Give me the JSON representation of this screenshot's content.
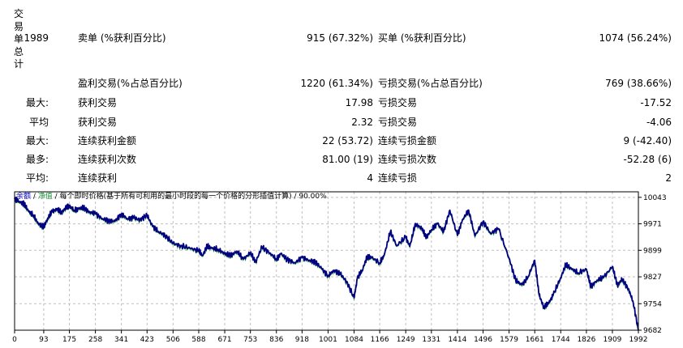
{
  "side_label": [
    "交",
    "易",
    "单",
    "总",
    "计"
  ],
  "stats": [
    {
      "prefix": "1989",
      "label1": "卖单 (%获利百分比)",
      "value1": "915 (67.32%)",
      "label2": "买单 (%获利百分比)",
      "value2": "1074 (56.24%)"
    },
    {
      "prefix": "",
      "label1": "盈利交易(%占总百分比)",
      "value1": "1220 (61.34%)",
      "label2": "亏损交易(%占总百分比)",
      "value2": "769 (38.66%)"
    },
    {
      "prefix": "最大:",
      "label1": "获利交易",
      "value1": "17.98",
      "label2": "亏损交易",
      "value2": "-17.52"
    },
    {
      "prefix": "平均",
      "label1": "获利交易",
      "value1": "2.32",
      "label2": "亏损交易",
      "value2": "-4.06"
    },
    {
      "prefix": "最大:",
      "label1": "连续获利金额",
      "value1": "22 (53.72)",
      "label2": "连续亏损金额",
      "value2": "9 (-42.40)"
    },
    {
      "prefix": "最多:",
      "label1": "连续获利次数",
      "value1": "81.00 (19)",
      "label2": "连续亏损次数",
      "value2": "-52.28 (6)"
    },
    {
      "prefix": "平均:",
      "label1": "连续获利",
      "value1": "4",
      "label2": "连续亏损",
      "value2": "2"
    }
  ],
  "legend": {
    "balance": "余额",
    "sep1": " / ",
    "equity": "净值",
    "sep2": " / ",
    "description": "每个即时价格(基于所有可利用的最小时段的每一个价格的分形插值计算)",
    "sep3": " / ",
    "quality": "90.00%"
  },
  "colors": {
    "balance": "#000080",
    "equity": "#1a8f3a",
    "grid": "#bfbfbf"
  },
  "chart_data": {
    "type": "line",
    "x_ticks": [
      0,
      93,
      175,
      258,
      341,
      423,
      506,
      588,
      671,
      753,
      836,
      918,
      1001,
      1084,
      1166,
      1249,
      1331,
      1414,
      1496,
      1579,
      1661,
      1744,
      1826,
      1909,
      1992
    ],
    "y_ticks": [
      10043,
      9971,
      9899,
      9827,
      9754,
      9682
    ],
    "xlim": [
      0,
      1992
    ],
    "ylim": [
      9682,
      10058
    ],
    "series": [
      {
        "name": "余额",
        "x": [
          0,
          15,
          30,
          45,
          60,
          75,
          93,
          105,
          120,
          135,
          150,
          165,
          175,
          190,
          205,
          220,
          240,
          258,
          280,
          300,
          320,
          341,
          360,
          380,
          400,
          423,
          440,
          460,
          480,
          506,
          530,
          560,
          588,
          600,
          615,
          630,
          650,
          671,
          690,
          710,
          730,
          753,
          770,
          790,
          815,
          836,
          850,
          870,
          895,
          918,
          940,
          960,
          980,
          1001,
          1020,
          1040,
          1060,
          1084,
          1095,
          1110,
          1125,
          1140,
          1166,
          1180,
          1200,
          1220,
          1249,
          1262,
          1280,
          1300,
          1315,
          1331,
          1350,
          1370,
          1390,
          1414,
          1430,
          1450,
          1470,
          1496,
          1520,
          1545,
          1579,
          1600,
          1620,
          1640,
          1661,
          1675,
          1690,
          1705,
          1720,
          1744,
          1760,
          1780,
          1800,
          1826,
          1840,
          1860,
          1880,
          1909,
          1925,
          1940,
          1960,
          1975,
          1992
        ],
        "values": [
          10038,
          10032,
          10025,
          10005,
          9995,
          9972,
          9962,
          9985,
          10005,
          10010,
          10003,
          10015,
          10020,
          10008,
          10012,
          10015,
          10003,
          9999,
          9985,
          9980,
          9978,
          9998,
          9985,
          9988,
          9982,
          9995,
          9965,
          9950,
          9940,
          9918,
          9912,
          9905,
          9898,
          9885,
          9910,
          9905,
          9902,
          9890,
          9885,
          9897,
          9875,
          9892,
          9868,
          9908,
          9892,
          9875,
          9890,
          9875,
          9865,
          9880,
          9872,
          9868,
          9850,
          9830,
          9845,
          9835,
          9815,
          9770,
          9825,
          9845,
          9880,
          9880,
          9865,
          9885,
          9950,
          9912,
          9935,
          9910,
          9972,
          9958,
          9935,
          9955,
          9972,
          9950,
          10008,
          9940,
          9982,
          10008,
          9938,
          9978,
          9945,
          9958,
          9878,
          9818,
          9805,
          9828,
          9872,
          9778,
          9745,
          9755,
          9778,
          9825,
          9860,
          9848,
          9838,
          9848,
          9800,
          9818,
          9825,
          9855,
          9805,
          9820,
          9795,
          9760,
          9682
        ]
      }
    ]
  }
}
